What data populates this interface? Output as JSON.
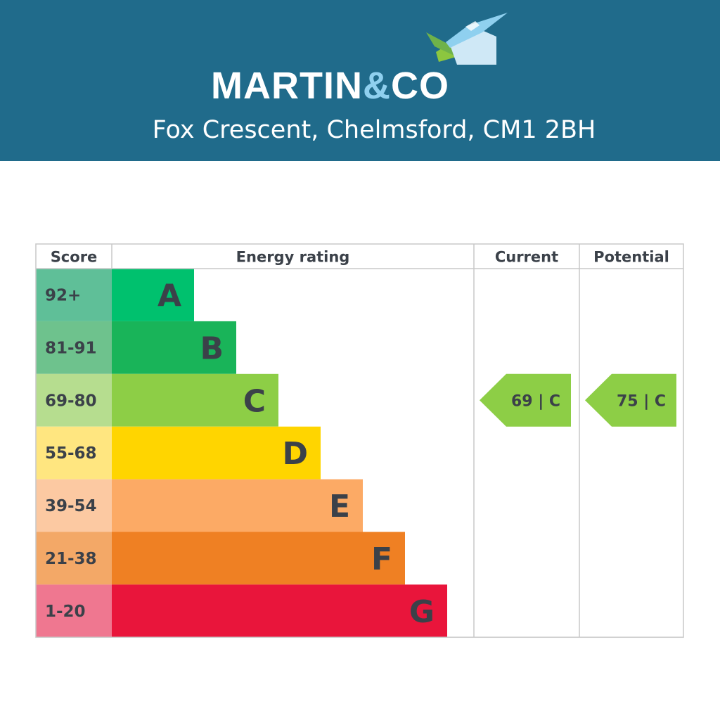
{
  "header": {
    "brand_main": "MARTIN",
    "brand_amp": "&",
    "brand_end": "CO",
    "address": "Fox Crescent, Chelmsford, CM1 2BH",
    "bg_color": "#206b8b",
    "logo_icon": "house-roof-logo-icon"
  },
  "chart_data": {
    "type": "table",
    "columns": [
      "Score",
      "Energy rating",
      "Current",
      "Potential"
    ],
    "bands": [
      {
        "letter": "A",
        "score": "92+",
        "color": "#00c16e",
        "score_bg": "#5fbf98"
      },
      {
        "letter": "B",
        "score": "81-91",
        "color": "#19b459",
        "score_bg": "#6ec28d"
      },
      {
        "letter": "C",
        "score": "69-80",
        "color": "#8dce46",
        "score_bg": "#b6dd8f"
      },
      {
        "letter": "D",
        "score": "55-68",
        "color": "#ffd500",
        "score_bg": "#ffe680"
      },
      {
        "letter": "E",
        "score": "39-54",
        "color": "#fcaa65",
        "score_bg": "#fcc9a2"
      },
      {
        "letter": "F",
        "score": "21-38",
        "color": "#ef8023",
        "score_bg": "#f3a867"
      },
      {
        "letter": "G",
        "score": "1-20",
        "color": "#e9153b",
        "score_bg": "#ef7790"
      }
    ],
    "current": {
      "value": 69,
      "band": "C",
      "label": "69 | C",
      "color": "#8dce46"
    },
    "potential": {
      "value": 75,
      "band": "C",
      "label": "75 | C",
      "color": "#8dce46"
    }
  }
}
